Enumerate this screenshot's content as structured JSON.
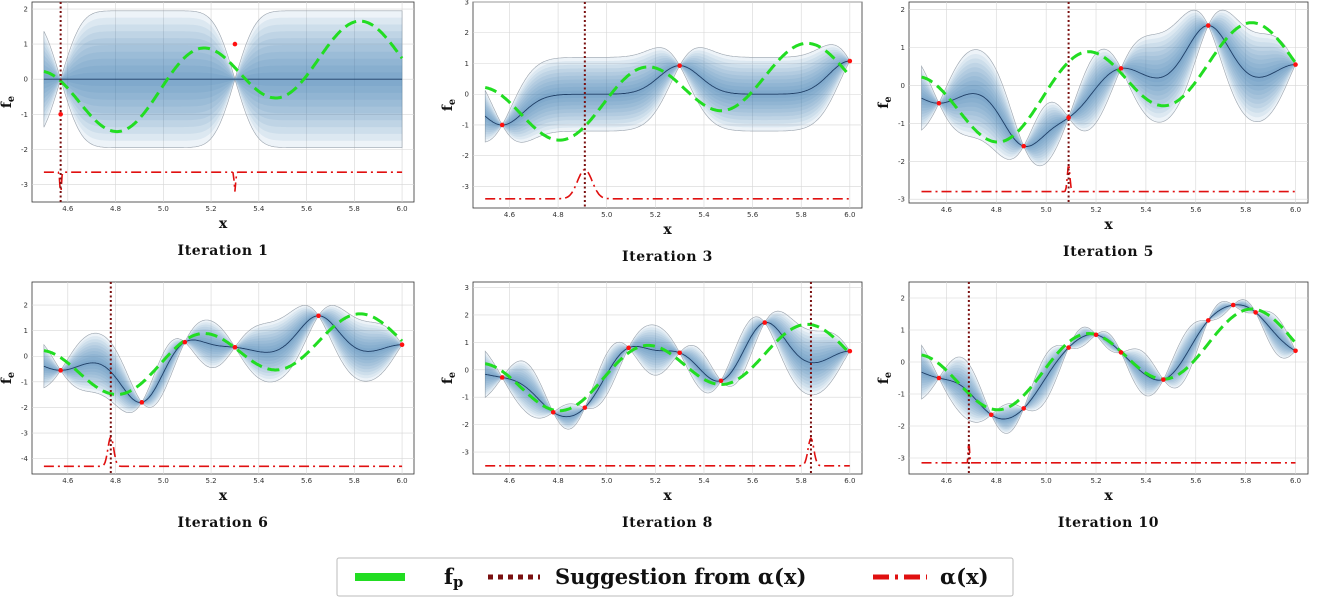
{
  "chart_data": [
    {
      "type": "line",
      "title": "Iteration 1",
      "xlabel": "x",
      "ylabel": "f_e",
      "xlim": [
        4.45,
        6.05
      ],
      "ylim": [
        -3.5,
        2.2
      ],
      "xticks": [
        "4.6",
        "4.8",
        "5.0",
        "5.2",
        "5.4",
        "5.6",
        "5.8",
        "6.0"
      ],
      "yticks": [
        "-3",
        "-2",
        "-1",
        "0",
        "1",
        "2"
      ],
      "observations": [
        [
          4.57,
          -1.0
        ],
        [
          5.3,
          1.0
        ]
      ],
      "suggestion_x": 4.57,
      "acquisition_baseline": -2.65,
      "acquisition_peaks": [
        [
          4.57,
          -3.3,
          0.003
        ],
        [
          5.3,
          -3.2,
          0.003
        ]
      ]
    },
    {
      "type": "line",
      "title": "Iteration 3",
      "xlabel": "x",
      "ylabel": "f_e",
      "xlim": [
        4.45,
        6.05
      ],
      "ylim": [
        -3.7,
        3.0
      ],
      "xticks": [
        "4.6",
        "4.8",
        "5.0",
        "5.2",
        "5.4",
        "5.6",
        "5.8",
        "6.0"
      ],
      "yticks": [
        "-3",
        "-2",
        "-1",
        "0",
        "1",
        "2",
        "3"
      ],
      "observations": [
        [
          4.57,
          -1.0
        ],
        [
          5.3,
          0.93
        ],
        [
          6.0,
          1.08
        ]
      ],
      "suggestion_x": 4.91,
      "acquisition_baseline": -3.4,
      "acquisition_peaks": [
        [
          4.91,
          -2.45,
          0.03
        ]
      ]
    },
    {
      "type": "line",
      "title": "Iteration 5",
      "xlabel": "x",
      "ylabel": "f_e",
      "xlim": [
        4.45,
        6.05
      ],
      "ylim": [
        -3.1,
        2.2
      ],
      "xticks": [
        "4.6",
        "4.8",
        "5.0",
        "5.2",
        "5.4",
        "5.6",
        "5.8",
        "6.0"
      ],
      "yticks": [
        "-3",
        "-2",
        "-1",
        "0",
        "1",
        "2"
      ],
      "observations": [
        [
          4.57,
          -0.47
        ],
        [
          4.91,
          -1.6
        ],
        [
          5.09,
          -0.85
        ],
        [
          5.3,
          0.45
        ],
        [
          5.65,
          1.58
        ],
        [
          6.0,
          0.55
        ]
      ],
      "suggestion_x": 5.09,
      "acquisition_baseline": -2.8,
      "acquisition_peaks": [
        [
          5.09,
          -2.1,
          0.005
        ]
      ]
    },
    {
      "type": "line",
      "title": "Iteration 6",
      "xlabel": "x",
      "ylabel": "f_e",
      "xlim": [
        4.45,
        6.05
      ],
      "ylim": [
        -4.6,
        2.9
      ],
      "xticks": [
        "4.6",
        "4.8",
        "5.0",
        "5.2",
        "5.4",
        "5.6",
        "5.8",
        "6.0"
      ],
      "yticks": [
        "-4",
        "-3",
        "-2",
        "-1",
        "0",
        "1",
        "2"
      ],
      "observations": [
        [
          4.57,
          -0.55
        ],
        [
          4.91,
          -1.8
        ],
        [
          5.09,
          0.55
        ],
        [
          5.3,
          0.35
        ],
        [
          5.65,
          1.58
        ],
        [
          6.0,
          0.45
        ]
      ],
      "suggestion_x": 4.78,
      "acquisition_baseline": -4.3,
      "acquisition_peaks": [
        [
          4.78,
          -3.15,
          0.012
        ]
      ]
    },
    {
      "type": "line",
      "title": "Iteration 8",
      "xlabel": "x",
      "ylabel": "f_e",
      "xlim": [
        4.45,
        6.05
      ],
      "ylim": [
        -3.8,
        3.2
      ],
      "xticks": [
        "4.6",
        "4.8",
        "5.0",
        "5.2",
        "5.4",
        "5.6",
        "5.8",
        "6.0"
      ],
      "yticks": [
        "-3",
        "-2",
        "-1",
        "0",
        "1",
        "2",
        "3"
      ],
      "observations": [
        [
          4.57,
          -0.28
        ],
        [
          4.78,
          -1.55
        ],
        [
          4.91,
          -1.38
        ],
        [
          5.09,
          0.8
        ],
        [
          5.3,
          0.62
        ],
        [
          5.47,
          -0.4
        ],
        [
          5.65,
          1.72
        ],
        [
          6.0,
          0.68
        ]
      ],
      "suggestion_x": 5.84,
      "acquisition_baseline": -3.5,
      "acquisition_peaks": [
        [
          5.84,
          -2.5,
          0.012
        ]
      ]
    },
    {
      "type": "line",
      "title": "Iteration 10",
      "xlabel": "x",
      "ylabel": "f_e",
      "xlim": [
        4.45,
        6.05
      ],
      "ylim": [
        -3.5,
        2.5
      ],
      "xticks": [
        "4.6",
        "4.8",
        "5.0",
        "5.2",
        "5.4",
        "5.6",
        "5.8",
        "6.0"
      ],
      "yticks": [
        "-3",
        "-2",
        "-1",
        "0",
        "1",
        "2"
      ],
      "observations": [
        [
          4.57,
          -0.5
        ],
        [
          4.78,
          -1.65
        ],
        [
          4.91,
          -1.45
        ],
        [
          5.09,
          0.45
        ],
        [
          5.2,
          0.85
        ],
        [
          5.3,
          0.3
        ],
        [
          5.47,
          -0.55
        ],
        [
          5.65,
          1.3
        ],
        [
          5.75,
          1.78
        ],
        [
          5.84,
          1.55
        ],
        [
          6.0,
          0.35
        ]
      ],
      "suggestion_x": 4.69,
      "acquisition_baseline": -3.15,
      "acquisition_peaks": [
        [
          4.69,
          -2.3,
          0.002
        ]
      ]
    }
  ],
  "legend": {
    "items": [
      {
        "name": "f_p",
        "color": "#22dd22",
        "style": "dashed"
      },
      {
        "name": "Suggestion from α(x)",
        "color": "#7a1010",
        "style": "dotted"
      },
      {
        "name": "α(x)",
        "color": "#e01010",
        "style": "dashdot"
      }
    ]
  },
  "colors": {
    "true_function": "#22dd22",
    "suggestion": "#7a1010",
    "acquisition": "#e01010",
    "mean": "#1f3f66",
    "band": "#2f6fb3",
    "observation": "#ff1010"
  }
}
